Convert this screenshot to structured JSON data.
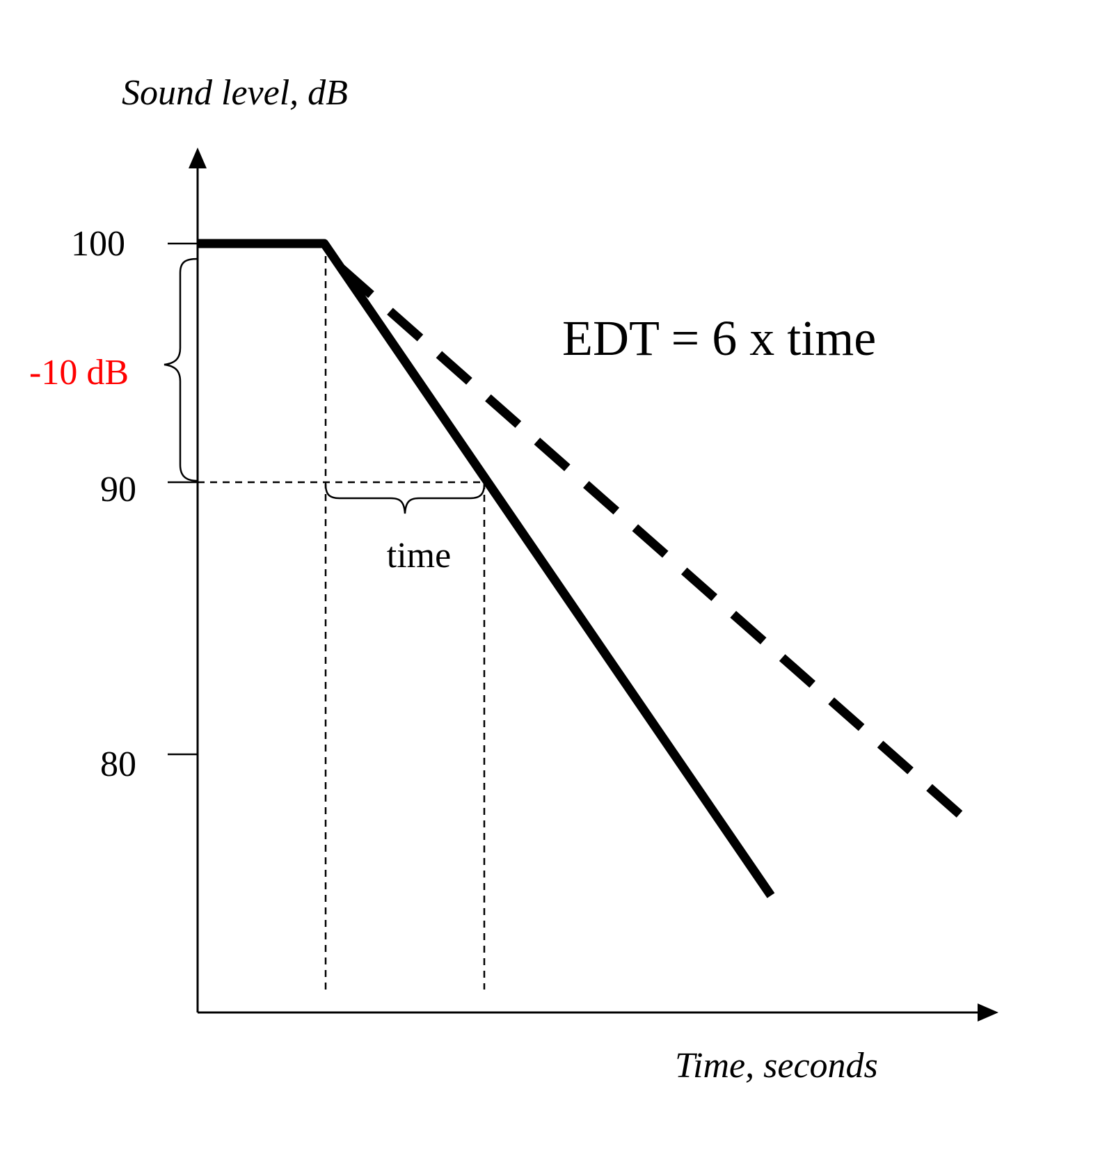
{
  "y_axis_title": "Sound level, dB",
  "x_axis_title": "Time, seconds",
  "y_ticks": [
    {
      "label": "100",
      "value": 100
    },
    {
      "label": "90",
      "value": 90
    },
    {
      "label": "80",
      "value": 80
    }
  ],
  "decay_annotation": {
    "text": "-10 dB",
    "color": "#ff0000"
  },
  "interval_label": "time",
  "formula": "EDT = 6 x time",
  "colors": {
    "ink": "#000000",
    "accent": "#ff0000"
  }
}
